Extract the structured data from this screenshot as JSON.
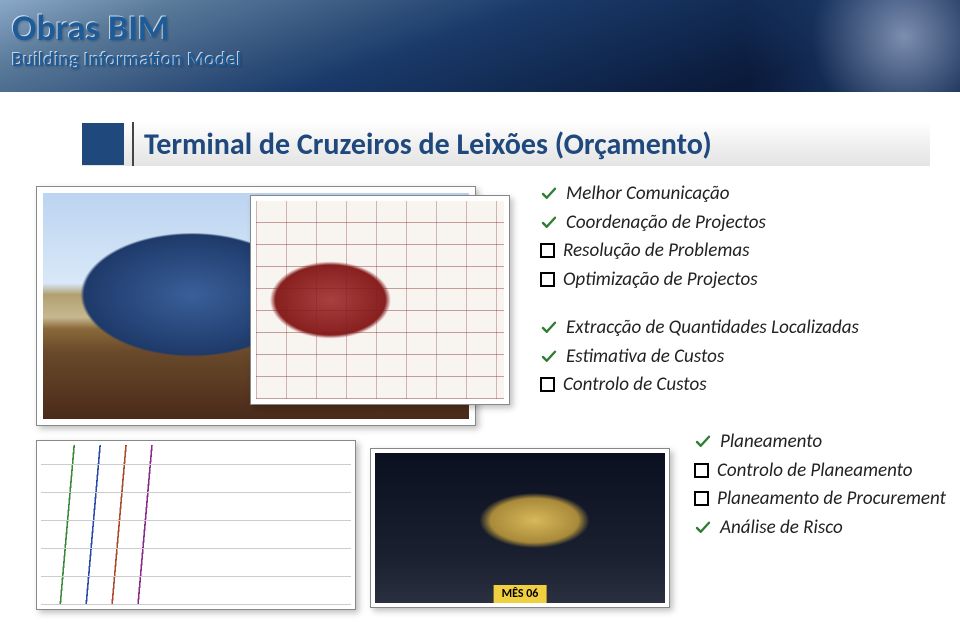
{
  "header": {
    "title": "Obras BIM",
    "subtitle": "Building Information Model"
  },
  "section": {
    "heading": "Terminal de Cruzeiros de Leixões (Orçamento)"
  },
  "colors": {
    "heading_blue": "#1f497d",
    "banner_gradient": [
      "#8aa8c8",
      "#1a3a6a",
      "#0a1a3a"
    ],
    "check_green": "#2e7d32"
  },
  "group1": [
    {
      "marker": "check",
      "text": "Melhor Comunicação"
    },
    {
      "marker": "check",
      "text": "Coordenação de Projectos"
    },
    {
      "marker": "box",
      "text": "Resolução de Problemas"
    },
    {
      "marker": "box",
      "text": "Optimização de Projectos"
    }
  ],
  "group2": [
    {
      "marker": "check",
      "text": "Extracção de Quantidades Localizadas"
    },
    {
      "marker": "check",
      "text": "Estimativa de Custos"
    },
    {
      "marker": "box",
      "text": "Controlo de Custos"
    }
  ],
  "group3": [
    {
      "marker": "check",
      "text": "Planeamento"
    },
    {
      "marker": "box",
      "text": "Controlo de Planeamento"
    },
    {
      "marker": "box",
      "text": "Planeamento de Procurement"
    },
    {
      "marker": "check",
      "text": "Análise de Risco"
    }
  ],
  "img4_tag": "MÊS 06"
}
